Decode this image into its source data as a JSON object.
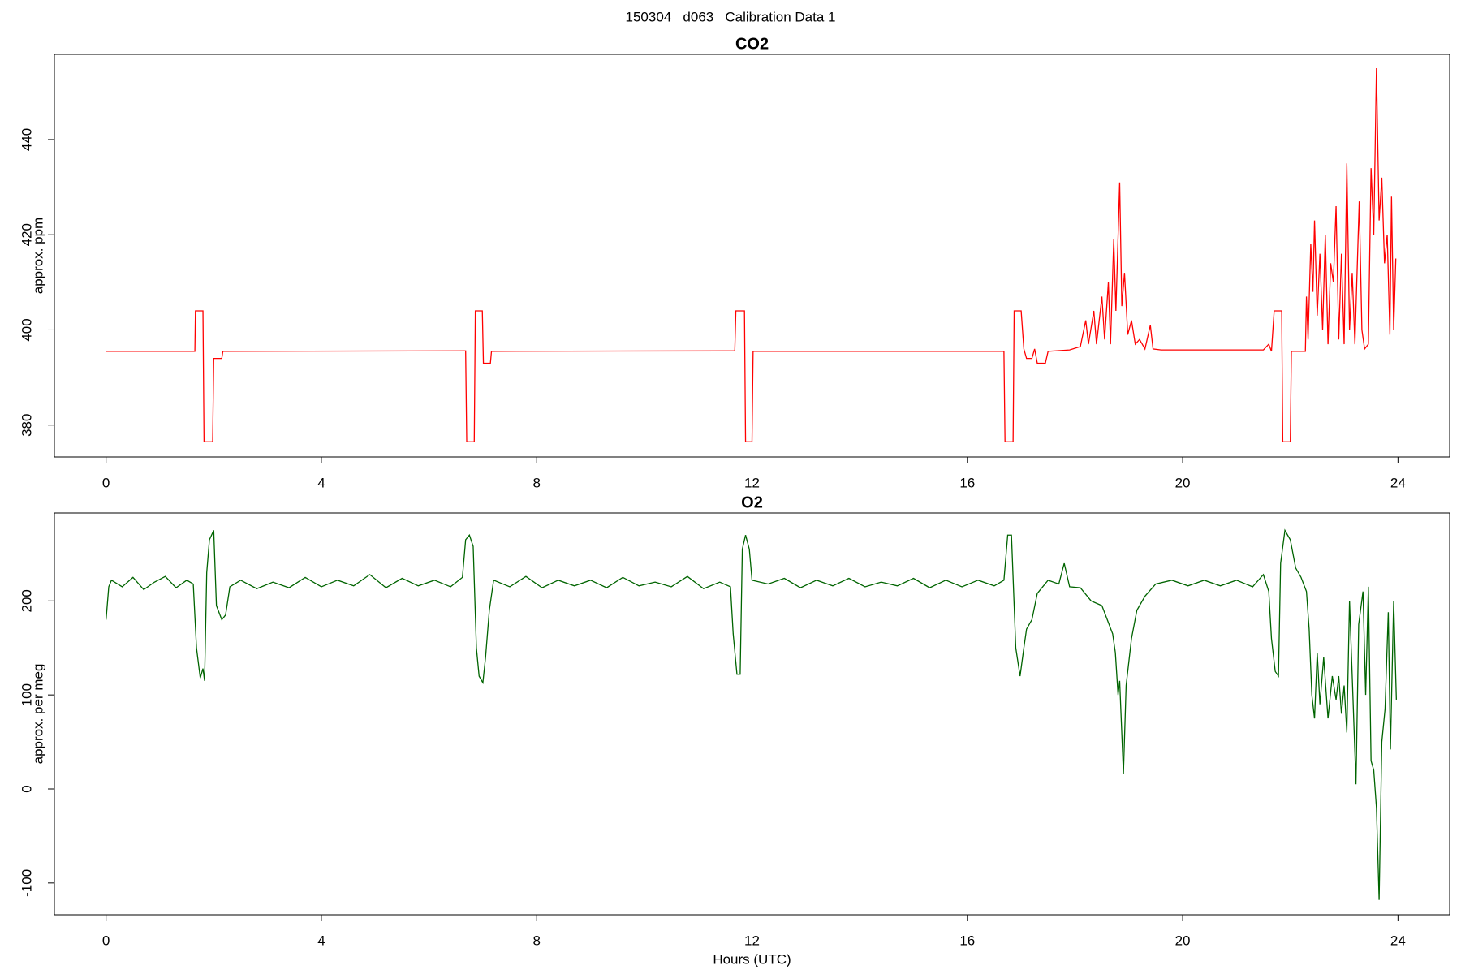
{
  "title": "150304   d063   Calibration Data 1",
  "chart_data": [
    {
      "type": "line",
      "title": "CO2",
      "ylabel": "approx. ppm",
      "color": "#ff0000",
      "xlim": [
        -0.96,
        24.96
      ],
      "ylim": [
        373.3,
        457.9
      ],
      "xticks": [
        0,
        4,
        8,
        12,
        16,
        20,
        24
      ],
      "yticks": [
        380,
        400,
        420,
        440
      ],
      "x": [
        0,
        1.65,
        1.66,
        1.8,
        1.82,
        1.98,
        2.0,
        2.15,
        2.17,
        6.68,
        6.7,
        6.84,
        6.86,
        6.99,
        7.01,
        7.14,
        7.16,
        11.68,
        11.7,
        11.86,
        11.88,
        12.0,
        12.02,
        16.68,
        16.7,
        16.85,
        16.87,
        17.0,
        17.05,
        17.1,
        17.2,
        17.25,
        17.3,
        17.45,
        17.5,
        17.9,
        18.1,
        18.2,
        18.25,
        18.35,
        18.4,
        18.5,
        18.55,
        18.62,
        18.66,
        18.72,
        18.76,
        18.83,
        18.87,
        18.92,
        18.98,
        19.05,
        19.12,
        19.2,
        19.3,
        19.4,
        19.45,
        19.6,
        21.5,
        21.6,
        21.65,
        21.7,
        21.84,
        21.86,
        22.0,
        22.02,
        22.28,
        22.3,
        22.33,
        22.38,
        22.42,
        22.45,
        22.5,
        22.55,
        22.6,
        22.65,
        22.7,
        22.75,
        22.8,
        22.85,
        22.9,
        22.95,
        23.0,
        23.05,
        23.1,
        23.15,
        23.2,
        23.28,
        23.33,
        23.38,
        23.45,
        23.5,
        23.55,
        23.6,
        23.65,
        23.7,
        23.75,
        23.8,
        23.85,
        23.88,
        23.92,
        23.96
      ],
      "values": [
        395.5,
        395.5,
        404,
        404,
        376.5,
        376.5,
        394,
        394,
        395.5,
        395.6,
        376.5,
        376.5,
        404,
        404,
        393,
        393,
        395.5,
        395.6,
        404,
        404,
        376.5,
        376.5,
        395.5,
        395.5,
        376.5,
        376.5,
        404,
        404,
        396,
        394,
        394,
        396,
        393,
        393,
        395.5,
        395.8,
        396.5,
        402,
        397,
        404,
        397,
        407,
        398,
        410,
        397,
        419,
        404,
        431,
        405,
        412,
        399,
        402,
        397,
        398,
        396,
        401,
        396,
        395.8,
        395.8,
        397,
        395.5,
        404,
        404,
        376.5,
        376.5,
        395.5,
        395.5,
        407,
        398,
        418,
        408,
        423,
        403,
        416,
        400,
        420,
        397,
        414,
        410,
        426,
        398,
        416,
        397,
        435,
        400,
        412,
        397,
        427,
        400,
        396,
        397,
        434,
        420,
        455,
        423,
        432,
        414,
        420,
        399,
        428,
        400,
        415
      ]
    },
    {
      "type": "line",
      "title": "O2",
      "ylabel": "approx. per meg",
      "xlabel": "Hours (UTC)",
      "color": "#006400",
      "xlim": [
        -0.96,
        24.96
      ],
      "ylim": [
        -133.8,
        293.5
      ],
      "xticks": [
        0,
        4,
        8,
        12,
        16,
        20,
        24
      ],
      "yticks": [
        -100,
        0,
        100,
        200
      ],
      "x": [
        0,
        0.05,
        0.1,
        0.3,
        0.5,
        0.7,
        0.9,
        1.1,
        1.3,
        1.5,
        1.62,
        1.68,
        1.75,
        1.8,
        1.83,
        1.87,
        1.92,
        2.0,
        2.05,
        2.15,
        2.22,
        2.3,
        2.5,
        2.8,
        3.1,
        3.4,
        3.7,
        4.0,
        4.3,
        4.6,
        4.9,
        5.2,
        5.5,
        5.8,
        6.1,
        6.4,
        6.62,
        6.68,
        6.75,
        6.82,
        6.88,
        6.93,
        7.0,
        7.05,
        7.12,
        7.2,
        7.5,
        7.8,
        8.1,
        8.4,
        8.7,
        9.0,
        9.3,
        9.6,
        9.9,
        10.2,
        10.5,
        10.8,
        11.1,
        11.4,
        11.6,
        11.65,
        11.72,
        11.78,
        11.82,
        11.88,
        11.95,
        12.0,
        12.3,
        12.6,
        12.9,
        13.2,
        13.5,
        13.8,
        14.1,
        14.4,
        14.7,
        15.0,
        15.3,
        15.6,
        15.9,
        16.2,
        16.5,
        16.68,
        16.75,
        16.82,
        16.9,
        16.98,
        17.05,
        17.1,
        17.2,
        17.3,
        17.5,
        17.7,
        17.8,
        17.9,
        18.1,
        18.3,
        18.5,
        18.6,
        18.7,
        18.75,
        18.8,
        18.83,
        18.9,
        18.95,
        19.05,
        19.15,
        19.3,
        19.5,
        19.8,
        20.1,
        20.4,
        20.7,
        21.0,
        21.3,
        21.5,
        21.6,
        21.65,
        21.72,
        21.78,
        21.82,
        21.9,
        22.0,
        22.1,
        22.2,
        22.3,
        22.35,
        22.4,
        22.45,
        22.5,
        22.55,
        22.62,
        22.7,
        22.78,
        22.85,
        22.9,
        22.95,
        23.0,
        23.05,
        23.1,
        23.15,
        23.22,
        23.27,
        23.35,
        23.4,
        23.45,
        23.5,
        23.55,
        23.6,
        23.65,
        23.7,
        23.76,
        23.82,
        23.86,
        23.92,
        23.97
      ],
      "values": [
        180,
        215,
        222,
        215,
        225,
        212,
        220,
        226,
        214,
        222,
        218,
        150,
        118,
        128,
        115,
        230,
        265,
        275,
        195,
        180,
        185,
        215,
        222,
        213,
        220,
        214,
        225,
        215,
        222,
        216,
        228,
        214,
        224,
        216,
        222,
        215,
        225,
        265,
        270,
        258,
        150,
        120,
        113,
        140,
        190,
        222,
        215,
        226,
        214,
        222,
        216,
        222,
        214,
        225,
        216,
        220,
        215,
        226,
        213,
        220,
        215,
        165,
        122,
        122,
        255,
        270,
        255,
        222,
        218,
        224,
        214,
        222,
        216,
        224,
        215,
        220,
        216,
        224,
        214,
        222,
        215,
        222,
        216,
        222,
        270,
        270,
        150,
        120,
        150,
        170,
        180,
        208,
        222,
        218,
        240,
        215,
        214,
        200,
        195,
        180,
        165,
        145,
        100,
        115,
        16,
        110,
        160,
        190,
        205,
        218,
        222,
        216,
        222,
        216,
        222,
        215,
        228,
        210,
        160,
        125,
        120,
        240,
        275,
        265,
        235,
        225,
        210,
        170,
        100,
        75,
        145,
        90,
        140,
        75,
        120,
        95,
        120,
        80,
        110,
        60,
        200,
        120,
        5,
        175,
        210,
        100,
        215,
        30,
        20,
        -20,
        -118,
        50,
        85,
        188,
        42,
        200,
        95
      ]
    }
  ]
}
